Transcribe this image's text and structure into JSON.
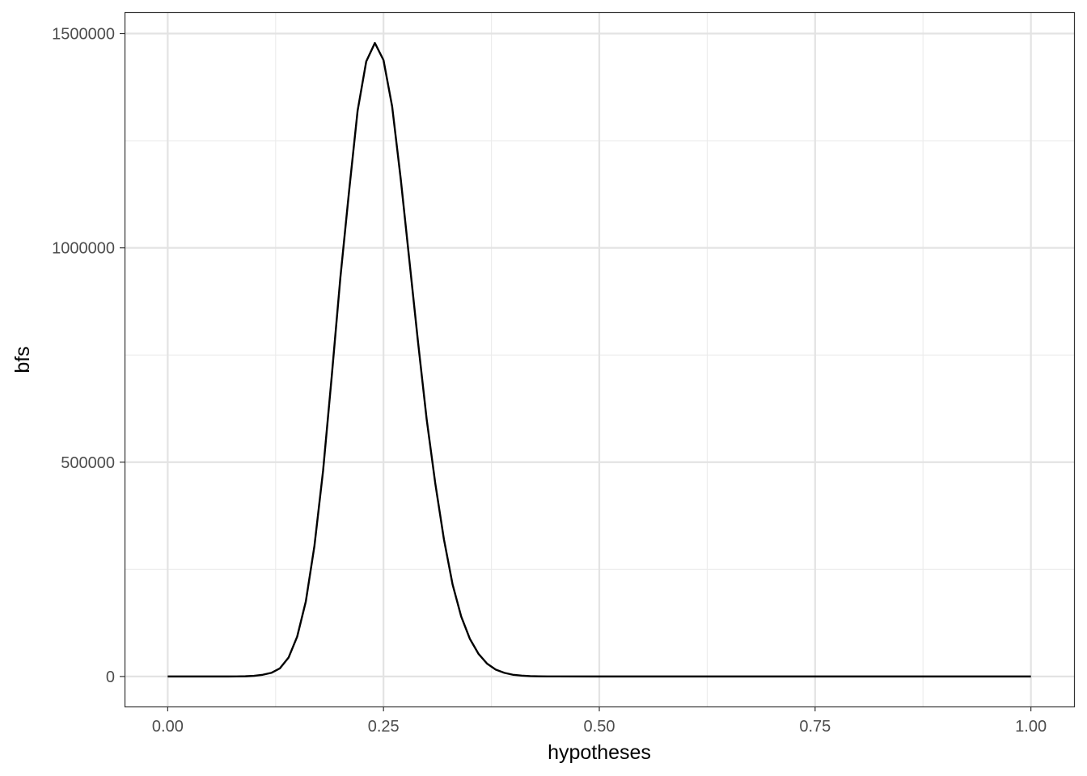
{
  "chart_data": {
    "type": "line",
    "title": "",
    "xlabel": "hypotheses",
    "ylabel": "bfs",
    "xlim": [
      -0.05,
      1.05
    ],
    "ylim": [
      -70000,
      1550000
    ],
    "x_ticks": [
      0.0,
      0.25,
      0.5,
      0.75,
      1.0
    ],
    "x_tick_labels": [
      "0.00",
      "0.25",
      "0.50",
      "0.75",
      "1.00"
    ],
    "x_minor_ticks": [
      0.125,
      0.375,
      0.625,
      0.875
    ],
    "y_ticks": [
      0,
      500000,
      1000000,
      1500000
    ],
    "y_tick_labels": [
      "0",
      "500000",
      "1000000",
      "1500000"
    ],
    "y_minor_ticks": [
      250000,
      750000,
      1250000
    ],
    "grid": true,
    "legend": "none",
    "line_color": "#000000",
    "series": [
      {
        "x": [
          0.0,
          0.01,
          0.02,
          0.03,
          0.04,
          0.05,
          0.06,
          0.07,
          0.08,
          0.09,
          0.1,
          0.11,
          0.12,
          0.13,
          0.14,
          0.15,
          0.16,
          0.17,
          0.18,
          0.19,
          0.2,
          0.21,
          0.22,
          0.23,
          0.24,
          0.25,
          0.26,
          0.27,
          0.28,
          0.29,
          0.3,
          0.31,
          0.32,
          0.33,
          0.34,
          0.35,
          0.36,
          0.37,
          0.38,
          0.39,
          0.4,
          0.41,
          0.42,
          0.43,
          0.44,
          0.45,
          0.5,
          0.6,
          0.7,
          0.8,
          0.9,
          1.0
        ],
        "values": [
          0,
          0,
          0,
          0,
          0,
          0,
          0,
          0,
          100,
          500,
          1500,
          4000,
          8500,
          19000,
          44000,
          93000,
          175000,
          305000,
          480000,
          700000,
          930000,
          1130000,
          1320000,
          1435000,
          1478000,
          1438000,
          1330000,
          1160000,
          970000,
          780000,
          600000,
          450000,
          320000,
          215000,
          140000,
          88000,
          53000,
          30000,
          16000,
          8500,
          4000,
          2000,
          900,
          400,
          150,
          50,
          0,
          0,
          0,
          0,
          0,
          0
        ]
      }
    ]
  }
}
